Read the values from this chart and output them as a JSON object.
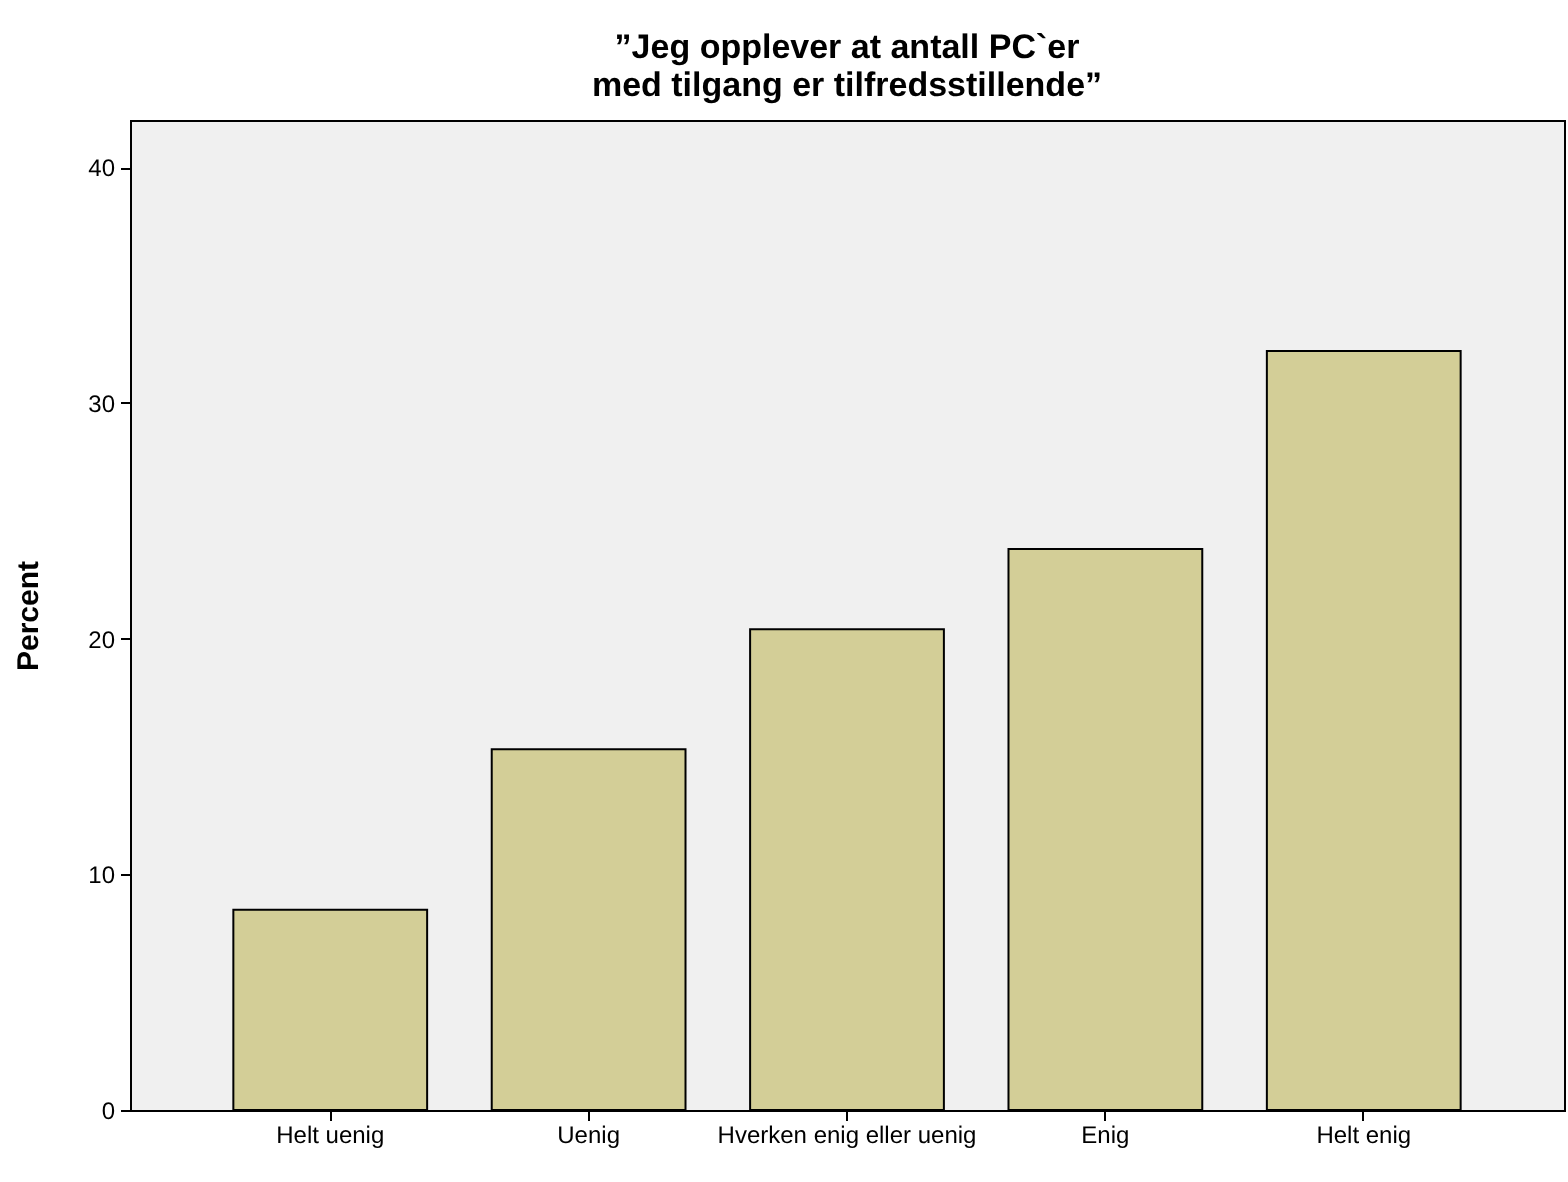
{
  "chart_data": {
    "type": "bar",
    "title": "”Jeg opplever at antall PC`er med tilgang er tilfredsstillende”",
    "ylabel": "Percent",
    "categories": [
      "Helt uenig",
      "Uenig",
      "Hverken enig eller uenig",
      "Enig",
      "Helt enig"
    ],
    "values": [
      8.5,
      15.3,
      20.4,
      23.8,
      32.2
    ],
    "color": "#d3ce97",
    "ylim": [
      0,
      42
    ],
    "yticks": [
      0,
      10,
      20,
      30,
      40
    ],
    "grid": false
  }
}
